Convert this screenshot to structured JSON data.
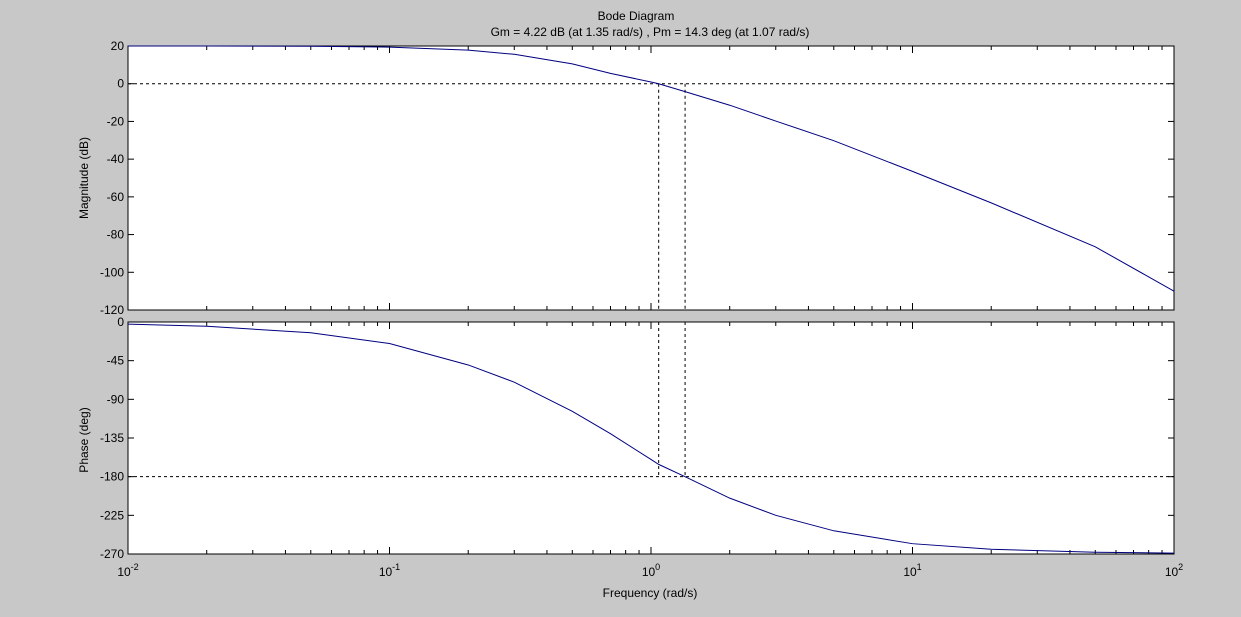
{
  "chart_data": {
    "type": "line",
    "title": "Bode Diagram",
    "subtitle": "Gm = 4.22 dB (at 1.35 rad/s) ,  Pm = 14.3 deg (at 1.07 rad/s)",
    "xlabel": "Frequency  (rad/s)",
    "xscale": "log",
    "xlim": [
      0.01,
      100
    ],
    "x_ticks": [
      {
        "value": 0.01,
        "base": "10",
        "exp": "-2"
      },
      {
        "value": 0.1,
        "base": "10",
        "exp": "-1"
      },
      {
        "value": 1,
        "base": "10",
        "exp": "0"
      },
      {
        "value": 10,
        "base": "10",
        "exp": "1"
      },
      {
        "value": 100,
        "base": "10",
        "exp": "2"
      }
    ],
    "grid": false,
    "line_color": "#000080",
    "margins": {
      "gain_margin_db": 4.22,
      "gain_crossover_freq": 1.35,
      "phase_margin_deg": 14.3,
      "phase_crossover_freq": 1.07
    },
    "magnitude": {
      "ylabel": "Magnitude (dB)",
      "ylim": [
        -120,
        20
      ],
      "y_ticks": [
        20,
        0,
        -20,
        -40,
        -60,
        -80,
        -100,
        -120
      ],
      "reference_line": 0,
      "series": [
        {
          "x": [
            0.01,
            0.02,
            0.05,
            0.1,
            0.2,
            0.3,
            0.5,
            0.7,
            1.0,
            1.07,
            1.35,
            2.0,
            3.0,
            5.0,
            10,
            20,
            50,
            100
          ],
          "values": [
            20,
            19.99,
            19.85,
            19.4,
            17.8,
            15.6,
            10.5,
            5.5,
            0.9,
            0,
            -4.2,
            -11.4,
            -19.8,
            -30.2,
            -46.5,
            -63.2,
            -86.5,
            -110
          ]
        }
      ]
    },
    "phase": {
      "ylabel": "Phase (deg)",
      "ylim": [
        -270,
        0
      ],
      "y_ticks": [
        0,
        -45,
        -90,
        -135,
        -180,
        -225,
        -270
      ],
      "reference_line": -180,
      "series": [
        {
          "x": [
            0.01,
            0.02,
            0.05,
            0.1,
            0.2,
            0.3,
            0.5,
            0.7,
            1.0,
            1.07,
            1.35,
            2.0,
            3.0,
            5.0,
            10,
            20,
            50,
            100
          ],
          "values": [
            -2.5,
            -5,
            -12.5,
            -25,
            -50,
            -70,
            -104,
            -130,
            -160,
            -165.7,
            -180,
            -205,
            -225,
            -243,
            -258,
            -264.5,
            -268,
            -269
          ]
        }
      ]
    }
  }
}
